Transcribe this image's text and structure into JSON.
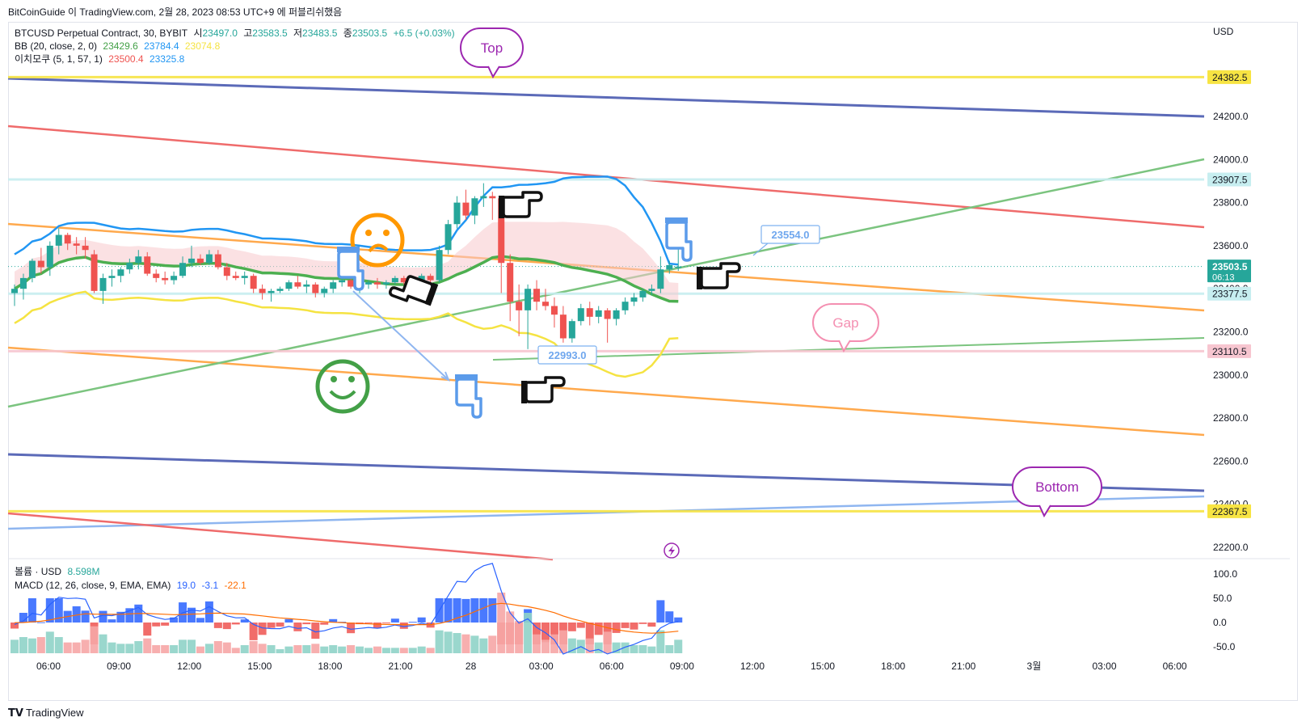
{
  "header": {
    "publisher_line": "BitCoinGuide 이 TradingView.com, 2월 28, 2023 08:53 UTC+9 에 퍼블리쉬했음"
  },
  "legend": {
    "symbol": "BTCUSD Perpetual Contract, 30, BYBIT",
    "open_label": "시",
    "open": "23497.0",
    "high_label": "고",
    "high": "23583.5",
    "low_label": "저",
    "low": "23483.5",
    "close_label": "종",
    "close": "23503.5",
    "change": "+6.5 (+0.03%)",
    "bb_label": "BB (20, close, 2, 0)",
    "bb_basis": "23429.6",
    "bb_upper": "23784.4",
    "bb_lower": "23074.8",
    "ichimoku_label": "이치모쿠 (5, 1, 57, 1)",
    "ichimoku_a": "23500.4",
    "ichimoku_b": "23325.8",
    "volume_label": "볼륨 · USD",
    "volume": "8.598M",
    "macd_label": "MACD (12, 26, close, 9, EMA, EMA)",
    "macd_hist": "19.0",
    "macd_line": "-3.1",
    "macd_signal": "-22.1"
  },
  "chart_data": {
    "type": "candlestick",
    "currency": "USD",
    "y_range": [
      22100,
      24500
    ],
    "y_ticks": [
      24200,
      24000,
      23800,
      23600,
      23400,
      23200,
      23000,
      22800,
      22600,
      22400,
      22200
    ],
    "y_tick_labels": [
      "24200.0",
      "24000.0",
      "23800.0",
      "23600.0",
      "23400.0",
      "23200.0",
      "23000.0",
      "22800.0",
      "22600.0",
      "22400.0",
      "22200.0"
    ],
    "x_tick_labels": [
      "06:00",
      "09:00",
      "12:00",
      "15:00",
      "18:00",
      "21:00",
      "28",
      "03:00",
      "06:00",
      "09:00",
      "12:00",
      "15:00",
      "18:00",
      "21:00",
      "3월",
      "03:00",
      "06:00"
    ],
    "price_labels": [
      {
        "value": 24382.5,
        "text": "24382.5",
        "color": "#f7e443"
      },
      {
        "value": 23907.5,
        "text": "23907.5",
        "color": "#c7eef0"
      },
      {
        "value": 23503.5,
        "text": "23503.5",
        "sub": "06:13",
        "color": "#26a69a"
      },
      {
        "value": 23377.5,
        "text": "23377.5",
        "color": "#c7eef0"
      },
      {
        "value": 23110.5,
        "text": "23110.5",
        "color": "#f7c6d0"
      },
      {
        "value": 22367.5,
        "text": "22367.5",
        "color": "#f7e443"
      }
    ],
    "annotations": {
      "top": "Top",
      "gap": "Gap",
      "bottom": "Bottom",
      "price1": "23554.0",
      "price2": "22993.0"
    },
    "candles": [
      [
        23380,
        23420,
        23320,
        23400
      ],
      [
        23400,
        23470,
        23350,
        23450
      ],
      [
        23450,
        23540,
        23430,
        23530
      ],
      [
        23530,
        23590,
        23470,
        23500
      ],
      [
        23500,
        23620,
        23460,
        23600
      ],
      [
        23600,
        23680,
        23560,
        23650
      ],
      [
        23650,
        23660,
        23580,
        23610
      ],
      [
        23610,
        23640,
        23560,
        23600
      ],
      [
        23600,
        23640,
        23540,
        23580
      ],
      [
        23560,
        23580,
        23380,
        23390
      ],
      [
        23390,
        23470,
        23330,
        23450
      ],
      [
        23450,
        23490,
        23410,
        23460
      ],
      [
        23460,
        23500,
        23430,
        23490
      ],
      [
        23490,
        23540,
        23470,
        23520
      ],
      [
        23520,
        23580,
        23490,
        23550
      ],
      [
        23550,
        23570,
        23460,
        23470
      ],
      [
        23470,
        23490,
        23430,
        23450
      ],
      [
        23450,
        23480,
        23420,
        23440
      ],
      [
        23440,
        23480,
        23420,
        23460
      ],
      [
        23460,
        23550,
        23450,
        23520
      ],
      [
        23520,
        23600,
        23500,
        23540
      ],
      [
        23540,
        23560,
        23510,
        23520
      ],
      [
        23520,
        23580,
        23510,
        23560
      ],
      [
        23560,
        23580,
        23490,
        23500
      ],
      [
        23500,
        23520,
        23440,
        23460
      ],
      [
        23460,
        23480,
        23440,
        23450
      ],
      [
        23450,
        23480,
        23420,
        23460
      ],
      [
        23460,
        23470,
        23380,
        23400
      ],
      [
        23400,
        23420,
        23350,
        23380
      ],
      [
        23380,
        23400,
        23340,
        23390
      ],
      [
        23390,
        23410,
        23380,
        23400
      ],
      [
        23400,
        23440,
        23390,
        23430
      ],
      [
        23430,
        23460,
        23400,
        23410
      ],
      [
        23410,
        23440,
        23380,
        23420
      ],
      [
        23420,
        23430,
        23360,
        23380
      ],
      [
        23380,
        23410,
        23360,
        23400
      ],
      [
        23400,
        23440,
        23380,
        23430
      ],
      [
        23430,
        23460,
        23410,
        23440
      ],
      [
        23440,
        23460,
        23400,
        23410
      ],
      [
        23410,
        23430,
        23380,
        23420
      ],
      [
        23420,
        23440,
        23400,
        23430
      ],
      [
        23430,
        23450,
        23400,
        23420
      ],
      [
        23420,
        23440,
        23400,
        23430
      ],
      [
        23430,
        23460,
        23420,
        23450
      ],
      [
        23450,
        23460,
        23420,
        23430
      ],
      [
        23430,
        23450,
        23410,
        23440
      ],
      [
        23440,
        23470,
        23420,
        23460
      ],
      [
        23460,
        23470,
        23430,
        23440
      ],
      [
        23440,
        23600,
        23430,
        23580
      ],
      [
        23580,
        23720,
        23560,
        23700
      ],
      [
        23700,
        23830,
        23680,
        23800
      ],
      [
        23800,
        23860,
        23720,
        23740
      ],
      [
        23740,
        23830,
        23700,
        23820
      ],
      [
        23820,
        23890,
        23780,
        23830
      ],
      [
        23830,
        23850,
        23720,
        23820
      ],
      [
        23820,
        23830,
        23380,
        23520
      ],
      [
        23520,
        23560,
        23250,
        23340
      ],
      [
        23340,
        23420,
        23180,
        23300
      ],
      [
        23300,
        23420,
        23120,
        23400
      ],
      [
        23400,
        23440,
        23300,
        23340
      ],
      [
        23340,
        23400,
        23300,
        23320
      ],
      [
        23320,
        23360,
        23220,
        23280
      ],
      [
        23280,
        23320,
        23150,
        23170
      ],
      [
        23170,
        23260,
        23150,
        23250
      ],
      [
        23250,
        23330,
        23230,
        23310
      ],
      [
        23310,
        23340,
        23230,
        23270
      ],
      [
        23270,
        23320,
        23240,
        23300
      ],
      [
        23300,
        23310,
        23150,
        23260
      ],
      [
        23260,
        23310,
        23230,
        23300
      ],
      [
        23300,
        23360,
        23280,
        23340
      ],
      [
        23340,
        23380,
        23320,
        23360
      ],
      [
        23360,
        23400,
        23340,
        23390
      ],
      [
        23390,
        23420,
        23370,
        23400
      ],
      [
        23400,
        23550,
        23380,
        23490
      ],
      [
        23490,
        23530,
        23470,
        23510
      ],
      [
        23497,
        23583,
        23483,
        23503
      ]
    ]
  },
  "macd_ticks": [
    "100.0",
    "50.0",
    "0.0",
    "-50.0"
  ],
  "footer": {
    "brand": "TradingView"
  }
}
